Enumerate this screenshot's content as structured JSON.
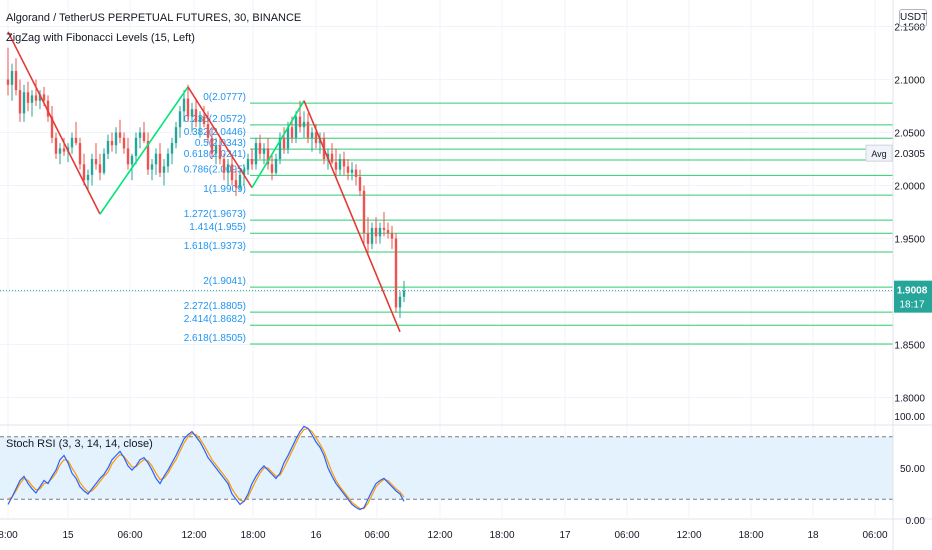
{
  "header": {
    "title": "Algorand / TetherUS PERPETUAL FUTURES, 30, BINANCE",
    "indicator": "ZigZag with Fibonacci Levels (15, Left)",
    "currency": "USDT"
  },
  "price_tags": {
    "avg_label": "Avg",
    "avg_value": "2.0305",
    "last_price": "1.9008",
    "countdown": "18:17"
  },
  "colors": {
    "up": "#26a69a",
    "down": "#ef5350",
    "fib_line": "#2ecc71",
    "fib_label": "#2196f3",
    "zigzag_up": "#00e676",
    "zigzag_down": "#e53935",
    "stoch_k": "#2962ff",
    "stoch_d": "#ff9800",
    "stoch_band": "#e3f2fd"
  },
  "stoch": {
    "label": "Stoch RSI (3, 3, 14, 14, close)",
    "ticks": [
      "100.00",
      "50.00",
      "0.00"
    ],
    "upper": 80,
    "lower": 20
  },
  "chart_data": {
    "type": "candlestick",
    "x_ticks": [
      "8:00",
      "15",
      "06:00",
      "12:00",
      "18:00",
      "16",
      "06:00",
      "12:00",
      "18:00",
      "17",
      "06:00",
      "12:00",
      "18:00",
      "18",
      "06:00"
    ],
    "y_ticks": [
      2.15,
      2.1,
      2.05,
      2.0,
      1.95,
      1.9,
      1.85,
      1.8
    ],
    "y_tick_labels": [
      "2.1500",
      "2.1000",
      "2.0500",
      "2.0000",
      "1.9500",
      "1.9000",
      "1.8500",
      "1.8000"
    ],
    "ylim": [
      1.775,
      2.175
    ],
    "fib_levels": [
      {
        "label": "0(2.0777)",
        "value": 2.0777
      },
      {
        "label": "0.236(2.0572)",
        "value": 2.0572
      },
      {
        "label": "0.382(2.0446)",
        "value": 2.0446
      },
      {
        "label": "0.5(2.0343)",
        "value": 2.0343
      },
      {
        "label": "0.618(2.0241)",
        "value": 2.0241
      },
      {
        "label": "0.786(2.0095)",
        "value": 2.0095
      },
      {
        "label": "1(1.9909)",
        "value": 1.9909
      },
      {
        "label": "1.272(1.9673)",
        "value": 1.9673
      },
      {
        "label": "1.414(1.955)",
        "value": 1.955
      },
      {
        "label": "1.618(1.9373)",
        "value": 1.9373
      },
      {
        "label": "2(1.9041)",
        "value": 1.9041
      },
      {
        "label": "2.272(1.8805)",
        "value": 1.8805
      },
      {
        "label": "2.414(1.8682)",
        "value": 1.8682
      },
      {
        "label": "2.618(1.8505)",
        "value": 1.8505
      }
    ],
    "zigzag": [
      [
        0,
        2.145
      ],
      [
        23,
        1.973
      ],
      [
        45,
        2.093
      ],
      [
        61,
        1.998
      ],
      [
        74,
        2.08
      ],
      [
        98,
        1.862
      ]
    ],
    "candles": [
      [
        0,
        2.1,
        2.13,
        2.085,
        2.095
      ],
      [
        1,
        2.095,
        2.115,
        2.08,
        2.108
      ],
      [
        2,
        2.108,
        2.12,
        2.085,
        2.09
      ],
      [
        3,
        2.09,
        2.1,
        2.06,
        2.068
      ],
      [
        4,
        2.068,
        2.095,
        2.06,
        2.088
      ],
      [
        5,
        2.088,
        2.098,
        2.07,
        2.078
      ],
      [
        6,
        2.078,
        2.09,
        2.065,
        2.085
      ],
      [
        7,
        2.085,
        2.1,
        2.075,
        2.08
      ],
      [
        8,
        2.08,
        2.09,
        2.072,
        2.086
      ],
      [
        9,
        2.086,
        2.093,
        2.075,
        2.08
      ],
      [
        10,
        2.08,
        2.085,
        2.06,
        2.065
      ],
      [
        11,
        2.065,
        2.075,
        2.04,
        2.045
      ],
      [
        12,
        2.045,
        2.05,
        2.025,
        2.03
      ],
      [
        13,
        2.03,
        2.04,
        2.02,
        2.035
      ],
      [
        14,
        2.035,
        2.045,
        2.028,
        2.032
      ],
      [
        15,
        2.032,
        2.04,
        2.022,
        2.036
      ],
      [
        16,
        2.036,
        2.05,
        2.03,
        2.045
      ],
      [
        17,
        2.045,
        2.06,
        2.038,
        2.04
      ],
      [
        18,
        2.04,
        2.045,
        2.015,
        2.02
      ],
      [
        19,
        2.02,
        2.03,
        2.0,
        2.005
      ],
      [
        20,
        2.005,
        2.015,
        1.995,
        2.01
      ],
      [
        21,
        2.01,
        2.03,
        2.0,
        2.025
      ],
      [
        22,
        2.025,
        2.04,
        2.015,
        2.02
      ],
      [
        23,
        2.02,
        2.03,
        2.005,
        2.012
      ],
      [
        24,
        2.012,
        2.035,
        2.01,
        2.03
      ],
      [
        25,
        2.03,
        2.048,
        2.025,
        2.042
      ],
      [
        26,
        2.042,
        2.05,
        2.032,
        2.038
      ],
      [
        27,
        2.038,
        2.055,
        2.03,
        2.05
      ],
      [
        28,
        2.05,
        2.062,
        2.04,
        2.045
      ],
      [
        29,
        2.045,
        2.05,
        2.03,
        2.035
      ],
      [
        30,
        2.035,
        2.045,
        2.015,
        2.02
      ],
      [
        31,
        2.02,
        2.03,
        2.005,
        2.028
      ],
      [
        32,
        2.028,
        2.05,
        2.02,
        2.045
      ],
      [
        33,
        2.045,
        2.055,
        2.035,
        2.05
      ],
      [
        34,
        2.05,
        2.06,
        2.04,
        2.042
      ],
      [
        35,
        2.042,
        2.05,
        2.01,
        2.015
      ],
      [
        36,
        2.015,
        2.025,
        2.005,
        2.02
      ],
      [
        37,
        2.02,
        2.035,
        2.01,
        2.03
      ],
      [
        38,
        2.03,
        2.04,
        2.008,
        2.012
      ],
      [
        39,
        2.012,
        2.025,
        2.0,
        2.018
      ],
      [
        40,
        2.018,
        2.035,
        2.012,
        2.03
      ],
      [
        41,
        2.03,
        2.045,
        2.02,
        2.04
      ],
      [
        42,
        2.04,
        2.06,
        2.035,
        2.055
      ],
      [
        43,
        2.055,
        2.075,
        2.045,
        2.07
      ],
      [
        44,
        2.07,
        2.09,
        2.06,
        2.082
      ],
      [
        45,
        2.082,
        2.095,
        2.06,
        2.065
      ],
      [
        46,
        2.065,
        2.078,
        2.05,
        2.072
      ],
      [
        47,
        2.072,
        2.082,
        2.055,
        2.06
      ],
      [
        48,
        2.06,
        2.07,
        2.045,
        2.065
      ],
      [
        49,
        2.065,
        2.075,
        2.055,
        2.058
      ],
      [
        50,
        2.058,
        2.07,
        2.04,
        2.045
      ],
      [
        51,
        2.045,
        2.055,
        2.025,
        2.03
      ],
      [
        52,
        2.03,
        2.045,
        2.02,
        2.038
      ],
      [
        53,
        2.038,
        2.045,
        2.02,
        2.025
      ],
      [
        54,
        2.025,
        2.03,
        2.005,
        2.012
      ],
      [
        55,
        2.012,
        2.025,
        2.0,
        2.02
      ],
      [
        56,
        2.02,
        2.028,
        2.0,
        2.005
      ],
      [
        57,
        2.005,
        2.015,
        1.99,
        1.998
      ],
      [
        58,
        1.998,
        2.015,
        1.995,
        2.01
      ],
      [
        59,
        2.01,
        2.02,
        2.0,
        2.015
      ],
      [
        60,
        2.015,
        2.03,
        2.01,
        2.025
      ],
      [
        61,
        2.025,
        2.035,
        2.015,
        2.02
      ],
      [
        62,
        2.02,
        2.045,
        2.015,
        2.04
      ],
      [
        63,
        2.04,
        2.048,
        2.025,
        2.03
      ],
      [
        64,
        2.03,
        2.04,
        2.02,
        2.035
      ],
      [
        65,
        2.035,
        2.045,
        2.015,
        2.02
      ],
      [
        66,
        2.02,
        2.03,
        2.005,
        2.012
      ],
      [
        67,
        2.012,
        2.03,
        2.01,
        2.025
      ],
      [
        68,
        2.025,
        2.05,
        2.02,
        2.045
      ],
      [
        69,
        2.045,
        2.055,
        2.03,
        2.035
      ],
      [
        70,
        2.035,
        2.06,
        2.03,
        2.055
      ],
      [
        71,
        2.055,
        2.065,
        2.04,
        2.045
      ],
      [
        72,
        2.045,
        2.07,
        2.04,
        2.065
      ],
      [
        73,
        2.065,
        2.08,
        2.05,
        2.055
      ],
      [
        74,
        2.055,
        2.07,
        2.045,
        2.06
      ],
      [
        75,
        2.06,
        2.068,
        2.04,
        2.045
      ],
      [
        76,
        2.045,
        2.055,
        2.032,
        2.05
      ],
      [
        77,
        2.05,
        2.058,
        2.035,
        2.04
      ],
      [
        78,
        2.04,
        2.05,
        2.03,
        2.045
      ],
      [
        79,
        2.045,
        2.05,
        2.02,
        2.025
      ],
      [
        80,
        2.025,
        2.035,
        2.015,
        2.03
      ],
      [
        81,
        2.03,
        2.04,
        2.02,
        2.022
      ],
      [
        82,
        2.022,
        2.035,
        2.008,
        2.015
      ],
      [
        83,
        2.015,
        2.03,
        2.01,
        2.025
      ],
      [
        84,
        2.025,
        2.032,
        2.01,
        2.018
      ],
      [
        85,
        2.018,
        2.025,
        2.005,
        2.012
      ],
      [
        86,
        2.012,
        2.022,
        2.005,
        2.015
      ],
      [
        87,
        2.015,
        2.02,
        2.0,
        2.008
      ],
      [
        88,
        2.008,
        2.015,
        1.99,
        1.995
      ],
      [
        89,
        1.995,
        2.0,
        1.945,
        1.955
      ],
      [
        90,
        1.955,
        1.97,
        1.935,
        1.945
      ],
      [
        91,
        1.945,
        1.965,
        1.94,
        1.96
      ],
      [
        92,
        1.96,
        1.97,
        1.945,
        1.952
      ],
      [
        93,
        1.952,
        1.965,
        1.945,
        1.96
      ],
      [
        94,
        1.96,
        1.975,
        1.952,
        1.958
      ],
      [
        95,
        1.958,
        1.965,
        1.95,
        1.955
      ],
      [
        96,
        1.955,
        1.962,
        1.94,
        1.95
      ],
      [
        97,
        1.95,
        1.955,
        1.88,
        1.885
      ],
      [
        98,
        1.885,
        1.9,
        1.875,
        1.895
      ],
      [
        99,
        1.895,
        1.91,
        1.89,
        1.9008
      ]
    ],
    "stoch_k": [
      15,
      22,
      30,
      38,
      42,
      35,
      30,
      26,
      32,
      38,
      35,
      42,
      48,
      58,
      62,
      55,
      45,
      40,
      32,
      28,
      25,
      30,
      35,
      40,
      44,
      50,
      58,
      62,
      66,
      60,
      52,
      48,
      52,
      58,
      60,
      55,
      48,
      40,
      35,
      42,
      48,
      55,
      62,
      70,
      78,
      82,
      85,
      80,
      75,
      68,
      60,
      55,
      50,
      45,
      40,
      35,
      25,
      20,
      15,
      18,
      25,
      35,
      42,
      48,
      52,
      48,
      44,
      40,
      45,
      55,
      62,
      70,
      78,
      85,
      90,
      88,
      82,
      75,
      70,
      62,
      50,
      42,
      35,
      30,
      25,
      20,
      15,
      12,
      10,
      12,
      20,
      28,
      35,
      38,
      40,
      36,
      32,
      28,
      25,
      18
    ],
    "stoch_d": [
      20,
      22,
      28,
      35,
      40,
      38,
      33,
      29,
      30,
      35,
      36,
      40,
      45,
      53,
      58,
      57,
      50,
      44,
      36,
      31,
      27,
      28,
      32,
      37,
      42,
      46,
      54,
      59,
      63,
      61,
      56,
      51,
      51,
      55,
      58,
      57,
      52,
      45,
      39,
      40,
      45,
      52,
      58,
      66,
      74,
      80,
      83,
      82,
      78,
      72,
      65,
      58,
      53,
      48,
      43,
      38,
      30,
      24,
      19,
      18,
      22,
      30,
      38,
      45,
      50,
      50,
      46,
      42,
      43,
      50,
      58,
      66,
      74,
      82,
      87,
      88,
      85,
      79,
      73,
      66,
      56,
      46,
      38,
      32,
      27,
      22,
      17,
      14,
      11,
      11,
      16,
      24,
      32,
      36,
      39,
      38,
      34,
      30,
      27,
      22
    ]
  }
}
